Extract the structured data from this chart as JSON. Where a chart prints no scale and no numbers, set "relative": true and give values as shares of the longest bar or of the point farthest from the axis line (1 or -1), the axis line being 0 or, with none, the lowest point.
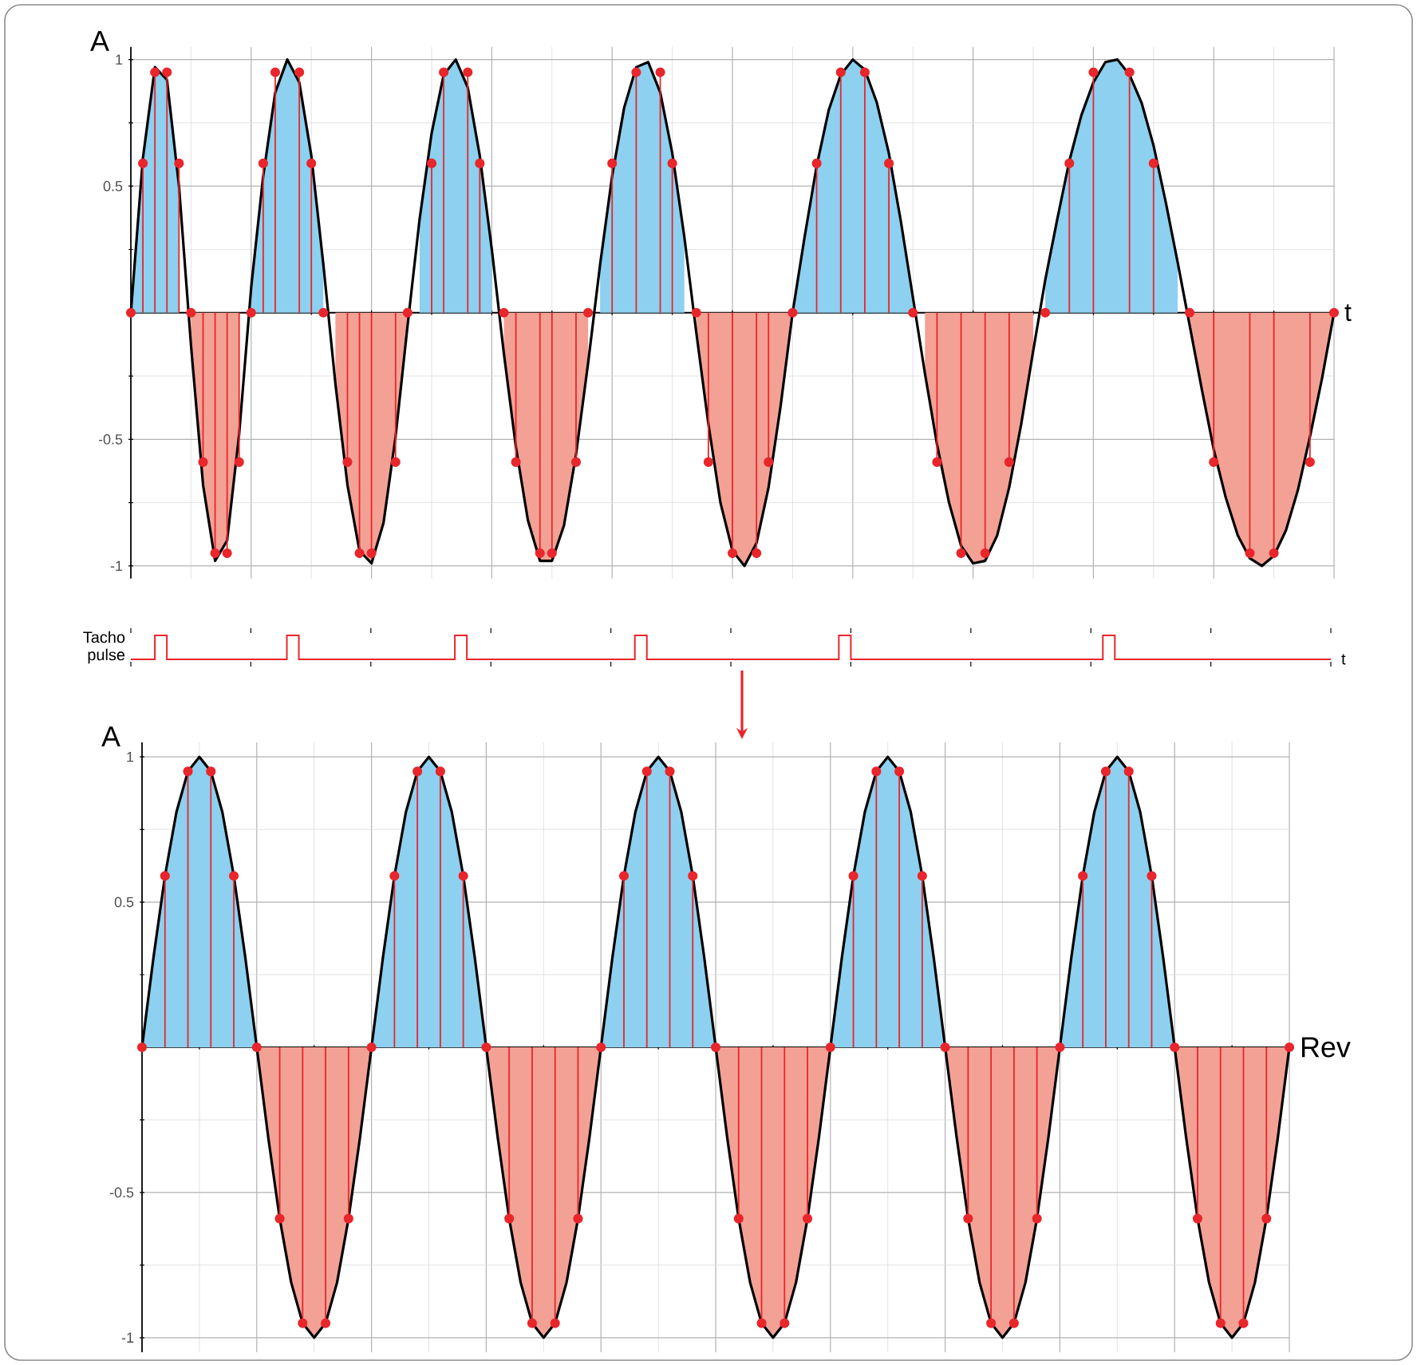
{
  "chart_data": [
    {
      "type": "line",
      "xlabel": "t",
      "ylabel": "A",
      "ylim": [
        -1.05,
        1.05
      ],
      "yticks": [
        -1,
        -0.5,
        {
          "value": 0,
          "label": null
        },
        0.5,
        1
      ],
      "grid": true,
      "tick_labels": "y",
      "categories": [
        null,
        null,
        null,
        null,
        null,
        null,
        null,
        null,
        null,
        null,
        null,
        null,
        null,
        null,
        null,
        null,
        null,
        null,
        null,
        null,
        null,
        null,
        null,
        null,
        null,
        null,
        null,
        null,
        null,
        null,
        null,
        null,
        null,
        null,
        null,
        null,
        null,
        null,
        null,
        null,
        null,
        null,
        null,
        null,
        null,
        null,
        null,
        null,
        null,
        null,
        null,
        null,
        null,
        null,
        null,
        null,
        null,
        null,
        null,
        null,
        null,
        null,
        null,
        null,
        null,
        null,
        null,
        null,
        null,
        null,
        null,
        null,
        null,
        null,
        null,
        null,
        null,
        null,
        null,
        null,
        null,
        null,
        null,
        null,
        null,
        null,
        null,
        null,
        null,
        null,
        null,
        null,
        null,
        null,
        null,
        null,
        null,
        null,
        null,
        null,
        null
      ],
      "series": [
        {
          "type": "area",
          "color": "#8dd0ef",
          "values": [
            0,
            0.61,
            0.97,
            0.92,
            0.5,
            null,
            null,
            null,
            null,
            null,
            0.1,
            0.54,
            0.87,
            1,
            0.91,
            0.62,
            0.19,
            null,
            null,
            null,
            null,
            null,
            null,
            null,
            0.37,
            0.71,
            0.94,
            1,
            0.89,
            0.62,
            0.25,
            null,
            null,
            null,
            null,
            null,
            null,
            null,
            null,
            0.19,
            0.54,
            0.81,
            0.97,
            0.99,
            0.87,
            0.63,
            0.3,
            null,
            null,
            null,
            null,
            null,
            null,
            null,
            null,
            0,
            0.3,
            0.58,
            0.8,
            0.94,
            1,
            0.96,
            0.83,
            0.63,
            0.36,
            0.06,
            null,
            null,
            null,
            null,
            null,
            null,
            null,
            null,
            null,
            null,
            0.13,
            0.37,
            0.6,
            0.78,
            0.91,
            0.99,
            1,
            0.94,
            0.83,
            0.66,
            0.44,
            0.2,
            null,
            null,
            null,
            null,
            null,
            null,
            null,
            null,
            null,
            null,
            null,
            null,
            null
          ]
        },
        {
          "type": "area",
          "color": "#f4a195",
          "values": [
            null,
            null,
            null,
            null,
            null,
            -0.13,
            -0.68,
            -0.98,
            -0.9,
            -0.48,
            null,
            null,
            null,
            null,
            null,
            null,
            null,
            -0.28,
            -0.68,
            -0.94,
            -0.99,
            -0.83,
            -0.49,
            -0.05,
            null,
            null,
            null,
            null,
            null,
            null,
            null,
            -0.16,
            -0.53,
            -0.82,
            -0.98,
            -0.98,
            -0.84,
            -0.56,
            -0.2,
            null,
            null,
            null,
            null,
            null,
            null,
            null,
            null,
            -0.08,
            -0.44,
            -0.75,
            -0.94,
            -1,
            -0.91,
            -0.69,
            -0.37,
            0,
            null,
            null,
            null,
            null,
            null,
            null,
            null,
            null,
            null,
            null,
            -0.24,
            -0.52,
            -0.75,
            -0.92,
            -0.99,
            -0.98,
            -0.88,
            -0.69,
            -0.44,
            -0.15,
            null,
            null,
            null,
            null,
            null,
            null,
            null,
            null,
            null,
            null,
            null,
            null,
            -0.05,
            -0.3,
            -0.54,
            -0.73,
            -0.88,
            -0.97,
            -1,
            -0.96,
            -0.86,
            -0.7,
            -0.49,
            -0.26,
            0
          ]
        },
        {
          "type": "line",
          "color": "#000000",
          "values": [
            0,
            0.61,
            0.97,
            0.92,
            0.5,
            -0.13,
            -0.68,
            -0.98,
            -0.9,
            -0.48,
            0.1,
            0.54,
            0.87,
            1,
            0.91,
            0.62,
            0.19,
            -0.28,
            -0.68,
            -0.94,
            -0.99,
            -0.83,
            -0.49,
            -0.05,
            0.37,
            0.71,
            0.94,
            1,
            0.89,
            0.62,
            0.25,
            -0.16,
            -0.53,
            -0.82,
            -0.98,
            -0.98,
            -0.84,
            -0.56,
            -0.2,
            0.19,
            0.54,
            0.81,
            0.97,
            0.99,
            0.87,
            0.63,
            0.3,
            -0.08,
            -0.44,
            -0.75,
            -0.94,
            -1,
            -0.91,
            -0.69,
            -0.37,
            0,
            0.3,
            0.58,
            0.8,
            0.94,
            1,
            0.96,
            0.83,
            0.63,
            0.36,
            0.06,
            -0.24,
            -0.52,
            -0.75,
            -0.92,
            -0.99,
            -0.98,
            -0.88,
            -0.69,
            -0.44,
            -0.15,
            0.13,
            0.37,
            0.6,
            0.78,
            0.91,
            0.99,
            1,
            0.94,
            0.83,
            0.66,
            0.44,
            0.2,
            -0.05,
            -0.3,
            -0.54,
            -0.73,
            -0.88,
            -0.97,
            -1,
            -0.96,
            -0.86,
            -0.7,
            -0.49,
            -0.26,
            0
          ]
        },
        {
          "type": "lollipop",
          "marker": "circle",
          "color": "#e8262b",
          "values": [
            0,
            0.59,
            0.95,
            0.95,
            0.59,
            0,
            -0.59,
            -0.95,
            -0.95,
            -0.59,
            0,
            0.59,
            0.95,
            null,
            0.95,
            0.59,
            0,
            null,
            -0.59,
            -0.95,
            -0.95,
            null,
            -0.59,
            0,
            null,
            0.59,
            0.95,
            null,
            0.95,
            0.59,
            null,
            0,
            -0.59,
            null,
            -0.95,
            -0.95,
            null,
            -0.59,
            0,
            null,
            0.59,
            null,
            0.95,
            null,
            0.95,
            0.59,
            null,
            0,
            -0.59,
            null,
            -0.95,
            null,
            -0.95,
            -0.59,
            null,
            0,
            null,
            0.59,
            null,
            0.95,
            null,
            0.95,
            null,
            0.59,
            null,
            0,
            null,
            -0.59,
            null,
            -0.95,
            null,
            -0.95,
            null,
            -0.59,
            null,
            null,
            0,
            null,
            0.59,
            null,
            0.95,
            null,
            null,
            0.95,
            null,
            0.59,
            null,
            null,
            0,
            null,
            -0.59,
            null,
            null,
            -0.95,
            null,
            -0.95,
            null,
            null,
            -0.59,
            null,
            0
          ]
        }
      ]
    },
    {
      "type": "step",
      "relative": true,
      "xlabel": "t",
      "ylabel": "Tacho pulse",
      "tick_labels": false,
      "categories": [
        null,
        null,
        null,
        null,
        null,
        null,
        null,
        null,
        null,
        null,
        null,
        null,
        null,
        null,
        null,
        null,
        null,
        null,
        null,
        null,
        null,
        null,
        null,
        null,
        null,
        null,
        null,
        null,
        null,
        null,
        null,
        null,
        null,
        null,
        null,
        null,
        null,
        null,
        null,
        null,
        null,
        null,
        null,
        null,
        null,
        null,
        null,
        null,
        null,
        null,
        null,
        null,
        null,
        null,
        null,
        null,
        null,
        null,
        null,
        null,
        null,
        null,
        null,
        null,
        null,
        null,
        null,
        null,
        null,
        null,
        null,
        null,
        null,
        null,
        null,
        null,
        null,
        null,
        null,
        null,
        null,
        null,
        null,
        null,
        null,
        null,
        null,
        null,
        null,
        null,
        null,
        null,
        null,
        null,
        null,
        null,
        null,
        null,
        null,
        null,
        null
      ],
      "series": [
        {
          "color": "#e8262b",
          "values": [
            0,
            0,
            1,
            0,
            0,
            0,
            0,
            0,
            0,
            0,
            0,
            0,
            0,
            1,
            0,
            0,
            0,
            0,
            0,
            0,
            0,
            0,
            0,
            0,
            0,
            0,
            0,
            1,
            0,
            0,
            0,
            0,
            0,
            0,
            0,
            0,
            0,
            0,
            0,
            0,
            0,
            0,
            1,
            0,
            0,
            0,
            0,
            0,
            0,
            0,
            0,
            0,
            0,
            0,
            0,
            0,
            0,
            0,
            0,
            1,
            0,
            0,
            0,
            0,
            0,
            0,
            0,
            0,
            0,
            0,
            0,
            0,
            0,
            0,
            0,
            0,
            0,
            0,
            0,
            0,
            0,
            1,
            0,
            0,
            0,
            0,
            0,
            0,
            0,
            0,
            0,
            0,
            0,
            0,
            0,
            0,
            0,
            0,
            0,
            0,
            0
          ]
        }
      ]
    },
    {
      "type": "line",
      "xlabel": "Rev",
      "ylabel": "A",
      "ylim": [
        -1.05,
        1.05
      ],
      "grid": true,
      "tick_labels": "y",
      "categories": [
        null,
        null,
        null,
        null,
        null,
        null,
        null,
        null,
        null,
        null,
        null,
        null,
        null,
        null,
        null,
        null,
        null,
        null,
        null,
        null,
        null,
        null,
        null,
        null,
        null,
        null,
        null,
        null,
        null,
        null,
        null,
        null,
        null,
        null,
        null,
        null,
        null,
        null,
        null,
        null,
        null,
        null,
        null,
        null,
        null,
        null,
        null,
        null,
        null,
        null,
        null,
        null,
        null,
        null,
        null,
        null,
        null,
        null,
        null,
        null,
        null,
        null,
        null,
        null,
        null,
        null,
        null,
        null,
        null,
        null,
        null,
        null,
        null,
        null,
        null,
        null,
        null,
        null,
        null,
        null,
        null,
        null,
        null,
        null,
        null,
        null,
        null,
        null,
        null,
        null,
        null,
        null,
        null,
        null,
        null,
        null,
        null,
        null,
        null,
        null,
        null
      ],
      "yticks": [
        -1,
        -0.5,
        {
          "value": 0,
          "label": null
        },
        0.5,
        1
      ],
      "series": [
        {
          "type": "area",
          "color": "#8dd0ef",
          "values": [
            0,
            0.31,
            0.59,
            0.81,
            0.95,
            1,
            0.95,
            0.81,
            0.59,
            0.31,
            0,
            null,
            null,
            null,
            null,
            null,
            null,
            null,
            null,
            null,
            0,
            0.31,
            0.59,
            0.81,
            0.95,
            1,
            0.95,
            0.81,
            0.59,
            0.31,
            0,
            null,
            null,
            null,
            null,
            null,
            null,
            null,
            null,
            null,
            0,
            0.31,
            0.59,
            0.81,
            0.95,
            1,
            0.95,
            0.81,
            0.59,
            0.31,
            0,
            null,
            null,
            null,
            null,
            null,
            null,
            null,
            null,
            null,
            0,
            0.31,
            0.59,
            0.81,
            0.95,
            1,
            0.95,
            0.81,
            0.59,
            0.31,
            0,
            null,
            null,
            null,
            null,
            null,
            null,
            null,
            null,
            null,
            0,
            0.31,
            0.59,
            0.81,
            0.95,
            1,
            0.95,
            0.81,
            0.59,
            0.31,
            0,
            null,
            null,
            null,
            null,
            null,
            null,
            null,
            null,
            null,
            null
          ]
        },
        {
          "type": "area",
          "color": "#f4a195",
          "values": [
            null,
            null,
            null,
            null,
            null,
            null,
            null,
            null,
            null,
            null,
            0,
            -0.31,
            -0.59,
            -0.81,
            -0.95,
            -1,
            -0.95,
            -0.81,
            -0.59,
            -0.31,
            0,
            null,
            null,
            null,
            null,
            null,
            null,
            null,
            null,
            null,
            0,
            -0.31,
            -0.59,
            -0.81,
            -0.95,
            -1,
            -0.95,
            -0.81,
            -0.59,
            -0.31,
            0,
            null,
            null,
            null,
            null,
            null,
            null,
            null,
            null,
            null,
            0,
            -0.31,
            -0.59,
            -0.81,
            -0.95,
            -1,
            -0.95,
            -0.81,
            -0.59,
            -0.31,
            0,
            null,
            null,
            null,
            null,
            null,
            null,
            null,
            null,
            null,
            0,
            -0.31,
            -0.59,
            -0.81,
            -0.95,
            -1,
            -0.95,
            -0.81,
            -0.59,
            -0.31,
            0,
            null,
            null,
            null,
            null,
            null,
            null,
            null,
            null,
            null,
            0,
            -0.31,
            -0.59,
            -0.81,
            -0.95,
            -1,
            -0.95,
            -0.81,
            -0.59,
            -0.31,
            0
          ]
        },
        {
          "type": "line",
          "color": "#000000",
          "values": [
            0,
            0.31,
            0.59,
            0.81,
            0.95,
            1,
            0.95,
            0.81,
            0.59,
            0.31,
            0,
            -0.31,
            -0.59,
            -0.81,
            -0.95,
            -1,
            -0.95,
            -0.81,
            -0.59,
            -0.31,
            0,
            0.31,
            0.59,
            0.81,
            0.95,
            1,
            0.95,
            0.81,
            0.59,
            0.31,
            0,
            -0.31,
            -0.59,
            -0.81,
            -0.95,
            -1,
            -0.95,
            -0.81,
            -0.59,
            -0.31,
            0,
            0.31,
            0.59,
            0.81,
            0.95,
            1,
            0.95,
            0.81,
            0.59,
            0.31,
            0,
            -0.31,
            -0.59,
            -0.81,
            -0.95,
            -1,
            -0.95,
            -0.81,
            -0.59,
            -0.31,
            0,
            0.31,
            0.59,
            0.81,
            0.95,
            1,
            0.95,
            0.81,
            0.59,
            0.31,
            0,
            -0.31,
            -0.59,
            -0.81,
            -0.95,
            -1,
            -0.95,
            -0.81,
            -0.59,
            -0.31,
            0,
            0.31,
            0.59,
            0.81,
            0.95,
            1,
            0.95,
            0.81,
            0.59,
            0.31,
            0,
            -0.31,
            -0.59,
            -0.81,
            -0.95,
            -1,
            -0.95,
            -0.81,
            -0.59,
            -0.31,
            0
          ]
        },
        {
          "type": "lollipop",
          "marker": "circle",
          "color": "#e8262b",
          "values": [
            0,
            null,
            0.59,
            null,
            0.95,
            null,
            0.95,
            null,
            0.59,
            null,
            0,
            null,
            -0.59,
            null,
            -0.95,
            null,
            -0.95,
            null,
            -0.59,
            null,
            0,
            null,
            0.59,
            null,
            0.95,
            null,
            0.95,
            null,
            0.59,
            null,
            0,
            null,
            -0.59,
            null,
            -0.95,
            null,
            -0.95,
            null,
            -0.59,
            null,
            0,
            null,
            0.59,
            null,
            0.95,
            null,
            0.95,
            null,
            0.59,
            null,
            0,
            null,
            -0.59,
            null,
            -0.95,
            null,
            -0.95,
            null,
            -0.59,
            null,
            0,
            null,
            0.59,
            null,
            0.95,
            null,
            0.95,
            null,
            0.59,
            null,
            0,
            null,
            -0.59,
            null,
            -0.95,
            null,
            -0.95,
            null,
            -0.59,
            null,
            0,
            null,
            0.59,
            null,
            0.95,
            null,
            0.95,
            null,
            0.59,
            null,
            0,
            null,
            -0.59,
            null,
            -0.95,
            null,
            -0.95,
            null,
            -0.59,
            null,
            0
          ]
        }
      ]
    }
  ]
}
